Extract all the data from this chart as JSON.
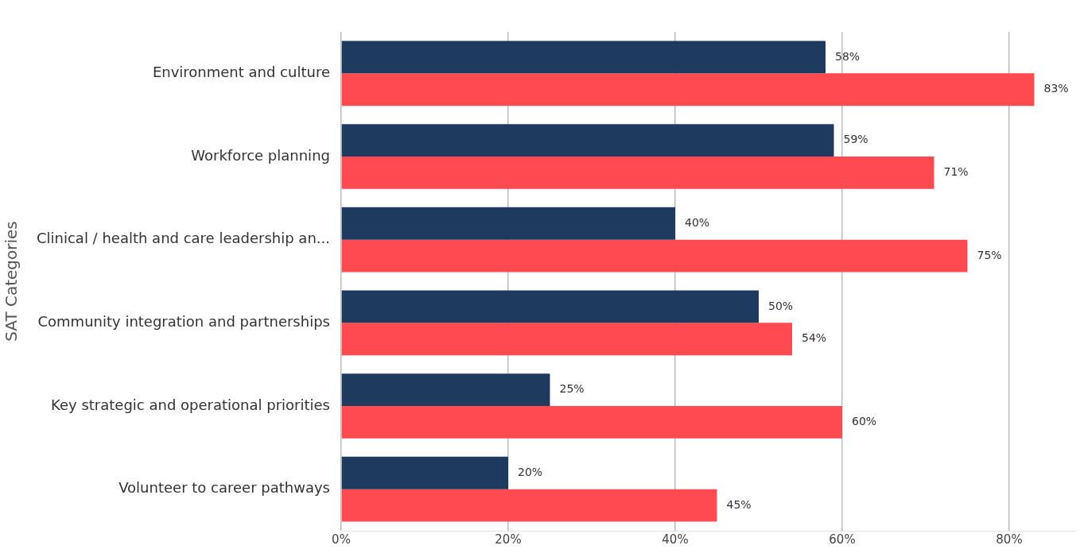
{
  "chart_data": {
    "type": "bar",
    "orientation": "horizontal",
    "ylabel": "SAT Categories",
    "categories": [
      "Environment and culture",
      "Workforce planning",
      "Clinical / health and care leadership an...",
      "Community integration and partnerships",
      "Key strategic and operational priorities",
      "Volunteer to career pathways"
    ],
    "series": [
      {
        "color": "#1e3a5f",
        "values": [
          58,
          59,
          40,
          50,
          25,
          20
        ],
        "value_labels": [
          "58%",
          "59%",
          "40%",
          "50%",
          "25%",
          "20%"
        ]
      },
      {
        "color": "#ff4a4f",
        "values": [
          83,
          71,
          75,
          54,
          60,
          45
        ],
        "value_labels": [
          "83%",
          "71%",
          "75%",
          "54%",
          "60%",
          "45%"
        ]
      }
    ],
    "xlim": [
      0,
      88
    ],
    "xticks": [
      {
        "value": 0,
        "label": "0%"
      },
      {
        "value": 20,
        "label": "20%"
      },
      {
        "value": 40,
        "label": "40%"
      },
      {
        "value": 60,
        "label": "60%"
      },
      {
        "value": 80,
        "label": "80%"
      }
    ],
    "grid": "x",
    "legend": false
  }
}
